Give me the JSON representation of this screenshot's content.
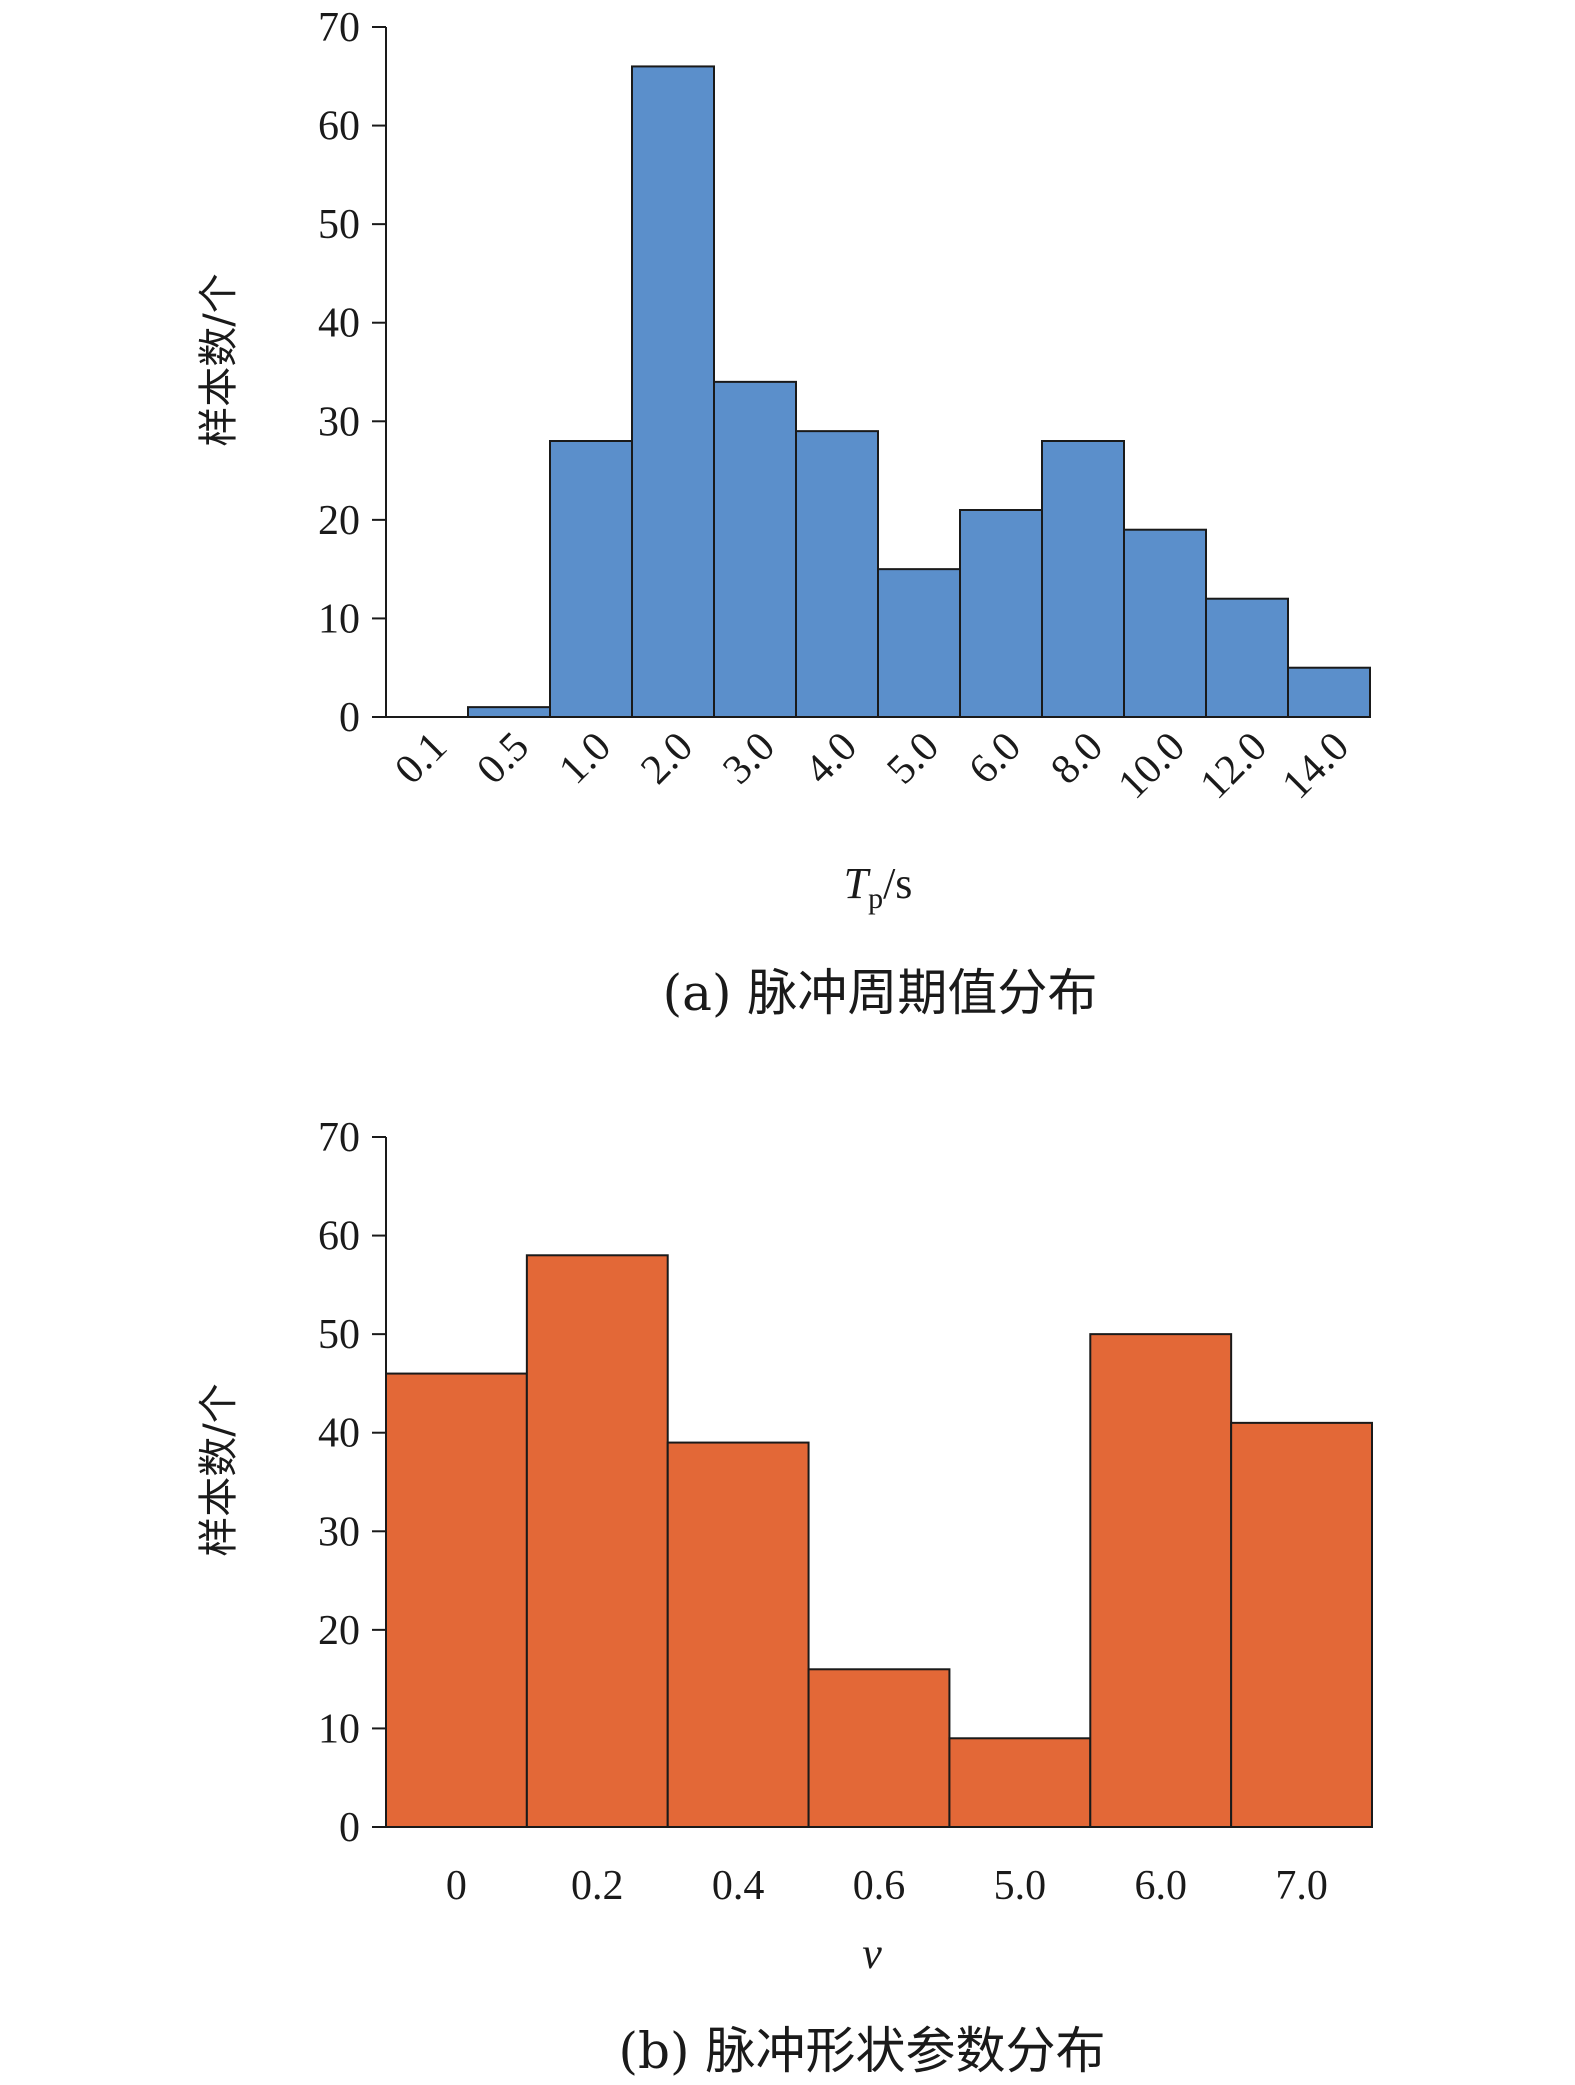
{
  "chart_data": [
    {
      "type": "bar",
      "caption": "(a) 脉冲周期值分布",
      "ylabel": "样本数/个",
      "xlabel_main": "T",
      "xlabel_sub": "p",
      "xlabel_unit": "/s",
      "categories": [
        "0.1",
        "0.5",
        "1.0",
        "2.0",
        "3.0",
        "4.0",
        "5.0",
        "6.0",
        "8.0",
        "10.0",
        "12.0",
        "14.0"
      ],
      "values": [
        0,
        1,
        28,
        66,
        34,
        29,
        15,
        21,
        28,
        19,
        12,
        5
      ],
      "ylim": [
        0,
        70
      ],
      "yticks": [
        "0",
        "10",
        "20",
        "30",
        "40",
        "50",
        "60",
        "70"
      ],
      "color": "#5b8fcb",
      "grid": false,
      "legend": "none"
    },
    {
      "type": "bar",
      "caption": "(b) 脉冲形状参数分布",
      "ylabel": "样本数/个",
      "xlabel": "v",
      "categories": [
        "0",
        "0.2",
        "0.4",
        "0.6",
        "5.0",
        "6.0",
        "7.0"
      ],
      "values": [
        46,
        58,
        39,
        16,
        9,
        50,
        41
      ],
      "ylim": [
        0,
        70
      ],
      "yticks": [
        "0",
        "10",
        "20",
        "30",
        "40",
        "50",
        "60",
        "70"
      ],
      "color": "#e36837",
      "grid": false,
      "legend": "none"
    }
  ]
}
